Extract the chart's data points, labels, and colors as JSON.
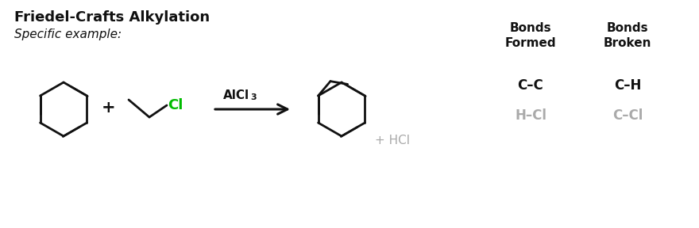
{
  "title": "Friedel-Crafts Alkylation",
  "subtitle": "Specific example:",
  "catalyst_main": "AlCl",
  "catalyst_sub": "3",
  "byproduct": "+ HCl",
  "bonds_formed_header": "Bonds\nFormed",
  "bonds_broken_header": "Bonds\nBroken",
  "bonds_formed": [
    "C–C",
    "H–Cl"
  ],
  "bonds_broken": [
    "C–H",
    "C–Cl"
  ],
  "bonds_formed_colors": [
    "#111111",
    "#aaaaaa"
  ],
  "bonds_broken_colors": [
    "#111111",
    "#aaaaaa"
  ],
  "bg_color": "#ffffff",
  "title_color": "#111111",
  "subtitle_color": "#111111",
  "chlorine_color": "#00bb00",
  "arrow_color": "#111111",
  "plus_color": "#111111",
  "byproduct_color": "#aaaaaa",
  "line_color": "#111111",
  "lw": 2.0
}
